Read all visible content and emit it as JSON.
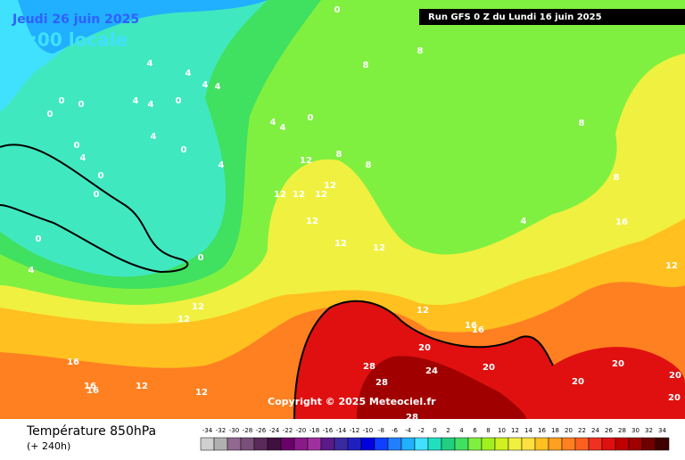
{
  "header": {
    "date": "Jeudi 26 juin 2025",
    "time": "1:00 locale",
    "run": "Run GFS 0 Z du Lundi 16 juin 2025"
  },
  "copyright": "Copyright © 2025 Meteociel.fr",
  "footer": {
    "title": "Température 850hPa",
    "lead": "(+ 240h)"
  },
  "contour_labels": [
    0,
    8,
    8,
    4,
    4,
    4,
    4,
    4,
    4,
    0,
    0,
    0,
    0,
    4,
    0,
    4,
    4,
    4,
    0,
    12,
    8,
    8,
    0,
    4,
    0,
    0,
    0,
    4,
    0,
    12,
    12,
    12,
    12,
    12,
    12,
    12,
    12,
    12,
    16,
    8,
    8,
    4,
    12,
    12,
    16,
    16,
    20,
    20,
    28,
    24,
    28,
    20,
    20,
    20,
    20,
    16,
    16,
    16,
    12,
    12,
    28
  ],
  "legend": {
    "values": [
      -34,
      -32,
      -30,
      -28,
      -26,
      -24,
      -22,
      -20,
      -18,
      -16,
      -14,
      -12,
      -10,
      -8,
      -6,
      -4,
      -2,
      0,
      2,
      4,
      6,
      8,
      10,
      12,
      14,
      16,
      18,
      20,
      22,
      24,
      26,
      28,
      30,
      32,
      34
    ],
    "colors": [
      "#d0d0d0",
      "#b0b0b0",
      "#906890",
      "#7a4f7a",
      "#5a2a5a",
      "#401040",
      "#6a006a",
      "#8a1a8a",
      "#a030a0",
      "#5a1a8a",
      "#3a2aa0",
      "#2020c0",
      "#0000e0",
      "#1040ff",
      "#2080ff",
      "#20b0ff",
      "#40e0ff",
      "#20e0c0",
      "#20d080",
      "#40e060",
      "#80f040",
      "#a0f020",
      "#d0f020",
      "#f0f040",
      "#ffe040",
      "#ffc020",
      "#ffa020",
      "#ff8020",
      "#ff6020",
      "#f03020",
      "#e01010",
      "#c00000",
      "#a00000",
      "#700000",
      "#400000"
    ]
  }
}
